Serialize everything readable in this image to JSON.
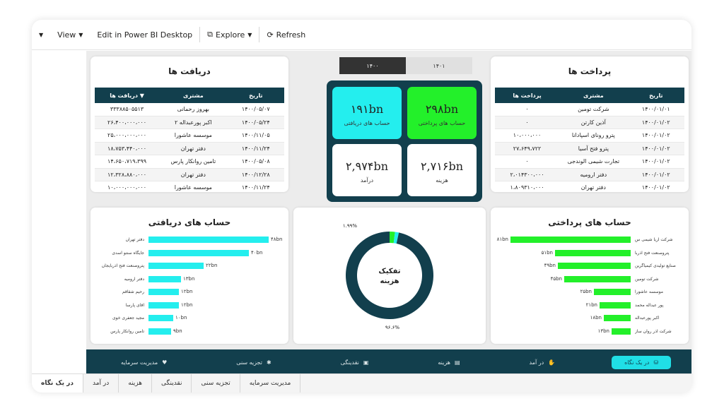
{
  "toolbar": {
    "collapse_icon": "chevron-down-icon",
    "view_label": "View",
    "edit_label": "Edit in Power BI Desktop",
    "explore_label": "Explore",
    "refresh_label": "Refresh"
  },
  "year_slicer": {
    "selected": "۱۴۰۰",
    "other": "۱۴۰۱"
  },
  "receipts": {
    "title": "دریافت ها",
    "headers": {
      "amount": "دریافت ها",
      "customer": "مشتری",
      "date": "تاریخ"
    },
    "rows": [
      {
        "amount": "۳۳۳۸۸۵۰۵۵۱۳",
        "customer": "بهروز رحمانی",
        "date": "۱۴۰۰/۰۵/۰۷"
      },
      {
        "amount": "۲۶،۴۰۰،۰۰۰،۰۰۰",
        "customer": "اکبر پورعبداله ۲",
        "date": "۱۴۰۰/۰۵/۲۴"
      },
      {
        "amount": "۲۵،۰۰۰،۰۰۰،۰۰۰",
        "customer": "موسسه عاشورا",
        "date": "۱۴۰۰/۱۱/۰۵"
      },
      {
        "amount": "۱۸،۷۵۳،۴۴۰،۰۰۰",
        "customer": "دفتر تهران",
        "date": "۱۴۰۰/۱۱/۲۴"
      },
      {
        "amount": "۱۴،۶۵۰،۷۱۹،۳۹۹",
        "customer": "تامین روانکار پارس",
        "date": "۱۴۰۰/۰۵/۰۸"
      },
      {
        "amount": "۱۲،۳۲۸،۸۸۰،۰۰۰",
        "customer": "دفتر تهران",
        "date": "۱۴۰۰/۱۲/۲۸"
      },
      {
        "amount": "۱۰،۰۰۰،۰۰۰،۰۰۰",
        "customer": "موسسه عاشورا",
        "date": "۱۴۰۰/۱۱/۲۴"
      }
    ]
  },
  "payments": {
    "title": "پرداخت ها",
    "headers": {
      "amount": "پرداخت ها",
      "customer": "مشتری",
      "date": "تاریخ"
    },
    "rows": [
      {
        "amount": "۰",
        "customer": "شرکت تومین",
        "date": "۱۴۰۰/۰۱/۰۱"
      },
      {
        "amount": "۰",
        "customer": "آذین کارتن",
        "date": "۱۴۰۰/۰۱/۰۲"
      },
      {
        "amount": "۱۰،۰۰۰،۰۰۰",
        "customer": "پترو رونای اسپادانا",
        "date": "۱۴۰۰/۰۱/۰۲"
      },
      {
        "amount": "۲۷،۶۴۹،۷۲۲",
        "customer": "پترو فتح آسیا",
        "date": "۱۴۰۰/۰۱/۰۲"
      },
      {
        "amount": "۰",
        "customer": "تجارت شیمی الوندجی",
        "date": "۱۴۰۰/۰۱/۰۲"
      },
      {
        "amount": "۲،۰۱۴۳۰۰،۰۰۰",
        "customer": "دفتر ارومیه",
        "date": "۱۴۰۰/۰۱/۰۲"
      },
      {
        "amount": "۱،۸۰۹۳۱۰،۰۰۰",
        "customer": "دفتر تهران",
        "date": "۱۴۰۰/۰۱/۰۲"
      }
    ]
  },
  "kpis": {
    "payable": {
      "value": "۲۹۸bn",
      "label": "حساب های پرداختی",
      "color": "#23f02a"
    },
    "receivable": {
      "value": "۱۹۱bn",
      "label": "حساب های دریافتی",
      "color": "#24eeee"
    },
    "cost": {
      "value": "۲,۷۱۶bn",
      "label": "هزینه"
    },
    "income": {
      "value": "۲,۹۷۴bn",
      "label": "درآمد"
    }
  },
  "receivable_chart": {
    "title": "حساب های دریافتی",
    "bar_color": "#24eeee",
    "rows": [
      {
        "label": "دفتر تهران",
        "value": 48,
        "value_label": "۴۸bn"
      },
      {
        "label": "جایگاه سنتو اسدی",
        "value": 40,
        "value_label": "۴۰bn"
      },
      {
        "label": "پتروصنعت فتح آذربایجان",
        "value": 22,
        "value_label": "۲۲bn"
      },
      {
        "label": "دفتر ارومیه",
        "value": 13,
        "value_label": "۱۳bn"
      },
      {
        "label": "رحیم شقاقم",
        "value": 12,
        "value_label": "۱۲bn"
      },
      {
        "label": "آقای پارسا",
        "value": 12,
        "value_label": "۱۲bn"
      },
      {
        "label": "مجید جعفری خوی",
        "value": 10,
        "value_label": "۱۰bn"
      },
      {
        "label": "تامین روانکار پارس",
        "value": 9,
        "value_label": "۹bn"
      }
    ]
  },
  "payable_chart": {
    "title": "حساب های پرداختی",
    "bar_color": "#23f02a",
    "rows": [
      {
        "label": "شرکت آریا شیمی س",
        "value": 81,
        "value_label": "۸۱bn"
      },
      {
        "label": "پتروصنعت فتح آذربا",
        "value": 51,
        "value_label": "۵۱bn"
      },
      {
        "label": "صنایع تولیدی کیمیاگرین",
        "value": 49,
        "value_label": "۴۹bn"
      },
      {
        "label": "شرکت تومین",
        "value": 45,
        "value_label": "۴۵bn"
      },
      {
        "label": "موسسه عاشورا",
        "value": 25,
        "value_label": "۲۵bn"
      },
      {
        "label": "پور عبداله محمد",
        "value": 21,
        "value_label": "۲۱bn"
      },
      {
        "label": "اکبر پورعبداله",
        "value": 18,
        "value_label": "۱۸bn"
      },
      {
        "label": "شرکت آذر روان ساز",
        "value": 13,
        "value_label": "۱۳bn"
      }
    ]
  },
  "donut": {
    "title_line1": "تفکیک",
    "title_line2": "هزینه",
    "slices": [
      {
        "value": 96.6,
        "label": "۹۶.۶%",
        "color": "#123f4d"
      },
      {
        "value": 1.99,
        "label": "۱.۹۹%",
        "color": "#23f02a"
      },
      {
        "value": 1.41,
        "label": "",
        "color": "#24eeee"
      }
    ]
  },
  "bottom_nav": [
    {
      "label": "در یک نگاه",
      "icon": "coins-icon",
      "glyph": "⛁"
    },
    {
      "label": "در آمد",
      "icon": "hand-coin-icon",
      "glyph": "✋"
    },
    {
      "label": "هزینه",
      "icon": "receipt-icon",
      "glyph": "▤"
    },
    {
      "label": "نقدینگی",
      "icon": "cash-icon",
      "glyph": "▣"
    },
    {
      "label": "تجزیه سنی",
      "icon": "bug-icon",
      "glyph": "✱"
    },
    {
      "label": "مدیریت سرمایه",
      "icon": "piggy-bank-icon",
      "glyph": "♥"
    }
  ],
  "page_tabs": [
    "در یک نگاه",
    "در آمد",
    "هزینه",
    "نقدینگی",
    "تجزیه سنی",
    "مدیریت سرمایه"
  ]
}
